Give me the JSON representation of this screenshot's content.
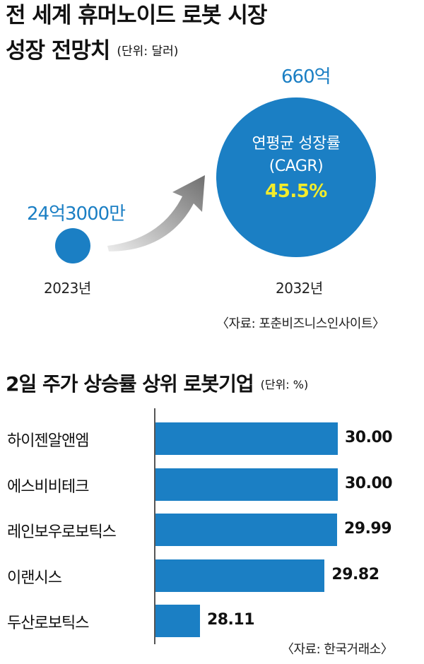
{
  "market": {
    "title_line1": "전 세계 휴머노이드 로봇 시장",
    "title_line2": "성장 전망치",
    "unit": "(단위: 달러)",
    "start_value": "24억3000만",
    "start_year": "2023년",
    "end_value": "660억",
    "end_year": "2032년",
    "cagr_label_line1": "연평균 성장률",
    "cagr_label_line2": "(CAGR)",
    "cagr_value": "45.5%",
    "source": "〈자료: 포춘비즈니스인사이트〉",
    "colors": {
      "circle": "#1b7fc4",
      "cagr_value": "#f3ec2b",
      "arrow": "#8a8a8a"
    }
  },
  "ranking": {
    "title": "2일 주가 상승률 상위 로봇기업",
    "unit": "(단위: %)",
    "source": "〈자료: 한국거래소〉"
  },
  "chart_data": {
    "type": "bar",
    "orientation": "horizontal",
    "title": "2일 주가 상승률 상위 로봇기업",
    "categories": [
      "하이젠알앤엠",
      "에스비비테크",
      "레인보우로보틱스",
      "이랜시스",
      "두산로보틱스"
    ],
    "values": [
      30.0,
      30.0,
      29.99,
      29.82,
      28.11
    ],
    "value_labels": [
      "30.00",
      "30.00",
      "29.99",
      "29.82",
      "28.11"
    ],
    "xlim": [
      27.5,
      30.0
    ],
    "bar_color": "#1b7fc4",
    "grid": false
  }
}
